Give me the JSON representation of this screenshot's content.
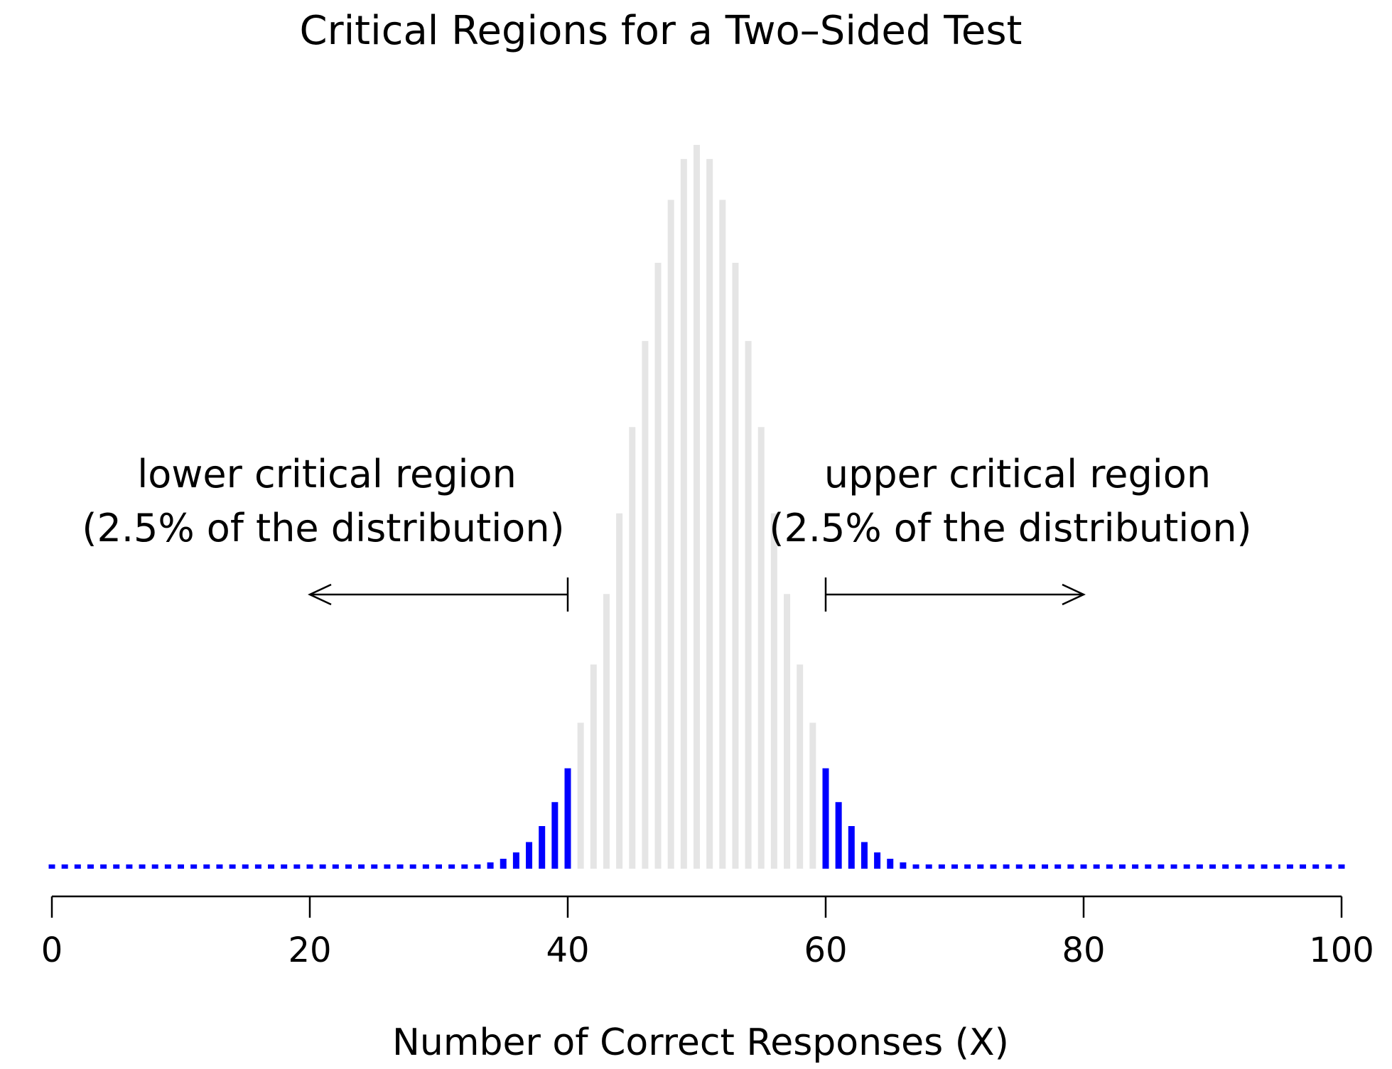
{
  "chart_data": {
    "type": "bar",
    "title": "Critical Regions for a Two–Sided Test",
    "xlabel": "Number of Correct Responses (X)",
    "ylabel": "",
    "xlim": [
      0,
      100
    ],
    "x_ticks": [
      "0",
      "20",
      "40",
      "60",
      "80",
      "100"
    ],
    "y_axis_shown": false,
    "grid": false,
    "distribution": "binomial",
    "n": 100,
    "p": 0.5,
    "x": [
      0,
      1,
      2,
      3,
      4,
      5,
      6,
      7,
      8,
      9,
      10,
      11,
      12,
      13,
      14,
      15,
      16,
      17,
      18,
      19,
      20,
      21,
      22,
      23,
      24,
      25,
      26,
      27,
      28,
      29,
      30,
      31,
      32,
      33,
      34,
      35,
      36,
      37,
      38,
      39,
      40,
      41,
      42,
      43,
      44,
      45,
      46,
      47,
      48,
      49,
      50,
      51,
      52,
      53,
      54,
      55,
      56,
      57,
      58,
      59,
      60,
      61,
      62,
      63,
      64,
      65,
      66,
      67,
      68,
      69,
      70,
      71,
      72,
      73,
      74,
      75,
      76,
      77,
      78,
      79,
      80,
      81,
      82,
      83,
      84,
      85,
      86,
      87,
      88,
      89,
      90,
      91,
      92,
      93,
      94,
      95,
      96,
      97,
      98,
      99,
      100
    ],
    "values": [
      0,
      0,
      0,
      0,
      0,
      0,
      0,
      0,
      0,
      0,
      0,
      0,
      0,
      0,
      0,
      0,
      0,
      0,
      0,
      0,
      0,
      0,
      0,
      0,
      0,
      0,
      0,
      0,
      0,
      2e-05,
      2e-05,
      5e-05,
      0.00011,
      0.00023,
      0.00046,
      0.00086,
      0.00156,
      0.0027,
      0.00447,
      0.00711,
      0.01084,
      0.01586,
      0.02229,
      0.03006,
      0.03895,
      0.04847,
      0.05796,
      0.06659,
      0.07353,
      0.07803,
      0.07959,
      0.07803,
      0.07353,
      0.06659,
      0.05796,
      0.04847,
      0.03895,
      0.03006,
      0.02229,
      0.01586,
      0.01084,
      0.00711,
      0.00447,
      0.0027,
      0.00156,
      0.00086,
      0.00046,
      0.00023,
      0.00011,
      5e-05,
      2e-05,
      2e-05,
      0,
      0,
      0,
      0,
      0,
      0,
      0,
      0,
      0,
      0,
      0,
      0,
      0,
      0,
      0,
      0,
      0,
      0,
      0,
      0,
      0,
      0,
      0,
      0,
      0,
      0,
      0,
      0,
      0
    ],
    "critical_regions": {
      "lower": {
        "upper_bound": 40,
        "text_line1": "lower critical region",
        "text_line2": "(2.5% of the distribution)",
        "arrow_from": 40,
        "arrow_to": 20
      },
      "upper": {
        "lower_bound": 60,
        "text_line1": "upper critical region",
        "text_line2": "(2.5% of the distribution)",
        "arrow_from": 60,
        "arrow_to": 80
      }
    },
    "colors": {
      "critical": "#0000ff",
      "non_critical": "#e5e5e5",
      "axis": "#000000"
    }
  }
}
